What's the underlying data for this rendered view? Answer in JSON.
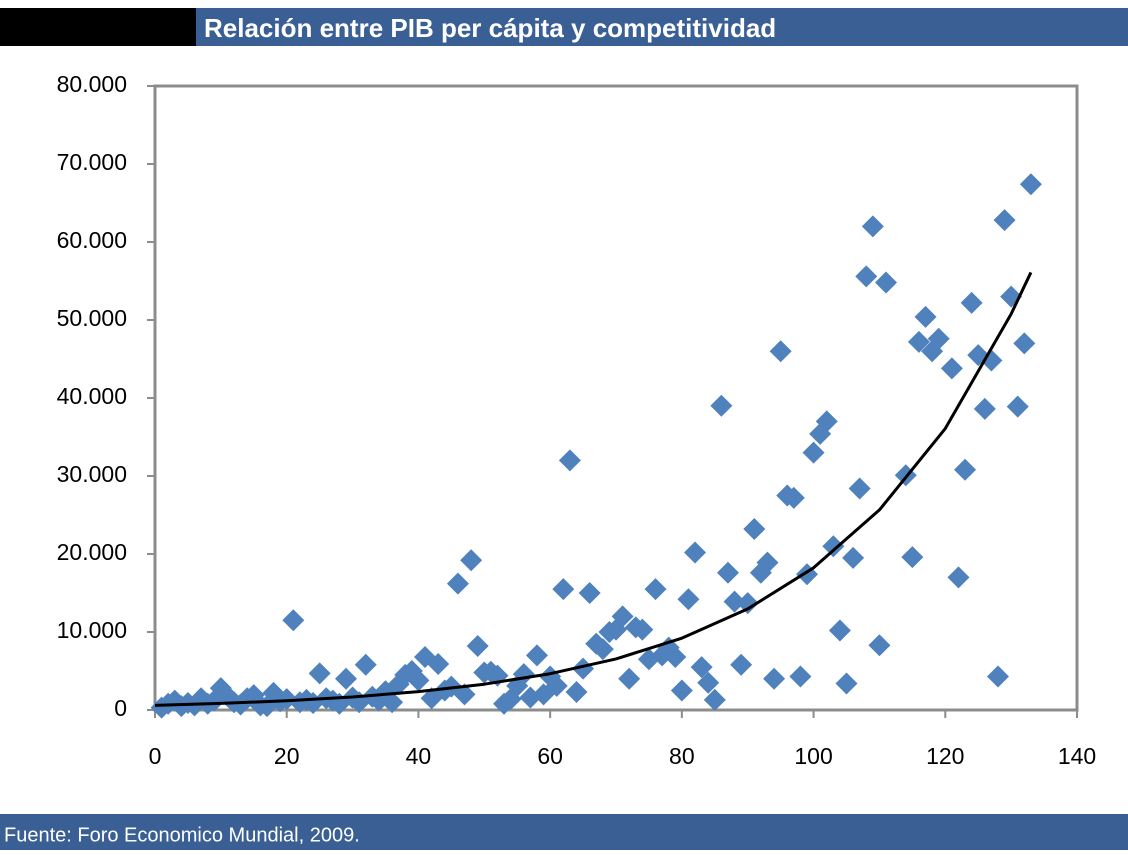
{
  "chart_data": {
    "type": "scatter",
    "title": "Relación entre PIB per cápita y competitividad",
    "source": "Fuente: Foro Economico Mundial, 2009.",
    "color": "#4f81bd",
    "x": [
      1,
      2,
      3,
      4,
      5,
      6,
      7,
      8,
      9,
      10,
      11,
      12,
      13,
      14,
      15,
      16,
      17,
      18,
      19,
      20,
      21,
      22,
      23,
      24,
      25,
      26,
      27,
      28,
      29,
      30,
      31,
      32,
      33,
      34,
      35,
      36,
      37,
      38,
      39,
      40,
      41,
      42,
      43,
      44,
      45,
      46,
      47,
      48,
      49,
      50,
      51,
      52,
      53,
      54,
      55,
      56,
      57,
      58,
      59,
      60,
      61,
      62,
      63,
      64,
      65,
      66,
      67,
      68,
      69,
      70,
      71,
      72,
      73,
      74,
      75,
      76,
      77,
      78,
      79,
      80,
      81,
      82,
      83,
      84,
      85,
      86,
      87,
      88,
      89,
      90,
      91,
      92,
      93,
      94,
      95,
      96,
      97,
      98,
      99,
      100,
      101,
      102,
      103,
      104,
      105,
      106,
      107,
      108,
      109,
      110,
      111,
      114,
      115,
      116,
      117,
      118,
      119,
      121,
      122,
      123,
      124,
      125,
      126,
      127,
      128,
      129,
      130,
      131,
      132,
      133
    ],
    "values": [
      300,
      800,
      1200,
      500,
      900,
      600,
      1500,
      800,
      1200,
      2800,
      1800,
      1000,
      700,
      1500,
      1900,
      600,
      500,
      2200,
      1100,
      1400,
      11500,
      1000,
      1300,
      900,
      4700,
      1500,
      1200,
      800,
      4000,
      1600,
      1000,
      5800,
      1700,
      1200,
      2400,
      1000,
      3300,
      4500,
      5000,
      3800,
      6800,
      1500,
      5900,
      2500,
      3000,
      16200,
      2000,
      19200,
      8200,
      4800,
      4900,
      4400,
      800,
      1400,
      3100,
      4600,
      1600,
      7000,
      2000,
      4300,
      3100,
      15500,
      32000,
      2300,
      5300,
      15000,
      8500,
      7800,
      10000,
      10300,
      12000,
      4000,
      10600,
      10300,
      6500,
      15500,
      7000,
      8000,
      6800,
      2500,
      14200,
      20200,
      5500,
      3500,
      1300,
      39000,
      17600,
      13900,
      5800,
      13700,
      23200,
      17600,
      18900,
      4000,
      46000,
      27500,
      27200,
      4300,
      17400,
      33000,
      35400,
      37000,
      21000,
      10200,
      3400,
      19500,
      28400,
      55600,
      62000,
      8300,
      54800,
      30100,
      19600,
      47200,
      50400,
      46000,
      47600,
      43800,
      17000,
      30800,
      52200,
      45500,
      38600,
      44800,
      4300,
      62800,
      53000,
      38900,
      47000,
      67400
    ],
    "trendline": {
      "color": "#000000",
      "x": [
        0,
        10,
        20,
        30,
        40,
        50,
        60,
        70,
        80,
        90,
        100,
        110,
        120,
        130,
        133
      ],
      "values": [
        600,
        844,
        1188,
        1671,
        2351,
        3307,
        4653,
        6546,
        9210,
        12958,
        18230,
        25650,
        36087,
        50771,
        56100
      ]
    },
    "xlim": [
      0,
      140
    ],
    "xticks": [
      0,
      20,
      40,
      60,
      80,
      100,
      120,
      140
    ],
    "ylim": [
      0,
      80000
    ],
    "yticks": [
      0,
      {
        "value": 10000,
        "label": "10.000"
      },
      {
        "value": 20000,
        "label": "20.000"
      },
      {
        "value": 30000,
        "label": "30.000"
      },
      {
        "value": 40000,
        "label": "40.000"
      },
      {
        "value": 50000,
        "label": "50.000"
      },
      {
        "value": 60000,
        "label": "60.000"
      },
      {
        "value": 70000,
        "label": "70.000"
      },
      {
        "value": 80000,
        "label": "80.000"
      }
    ],
    "grid": false
  }
}
